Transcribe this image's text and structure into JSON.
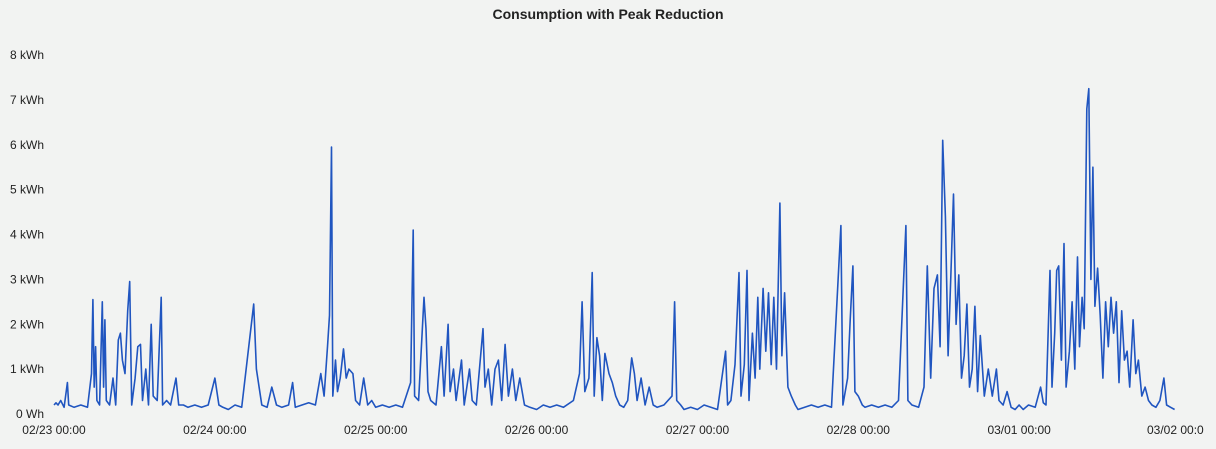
{
  "chart_data": {
    "type": "line",
    "title": "Consumption with Peak Reduction",
    "xlabel": "",
    "ylabel": "",
    "ylim": [
      0,
      8
    ],
    "y_unit": "kWh",
    "y_ticks": [
      {
        "value": 0,
        "label": "0 Wh"
      },
      {
        "value": 1,
        "label": "1 kWh"
      },
      {
        "value": 2,
        "label": "2 kWh"
      },
      {
        "value": 3,
        "label": "3 kWh"
      },
      {
        "value": 4,
        "label": "4 kWh"
      },
      {
        "value": 5,
        "label": "5 kWh"
      },
      {
        "value": 6,
        "label": "6 kWh"
      },
      {
        "value": 7,
        "label": "7 kWh"
      },
      {
        "value": 8,
        "label": "8 kWh"
      }
    ],
    "x_ticks": [
      {
        "value": 0,
        "label": "02/23 00:00"
      },
      {
        "value": 24,
        "label": "02/24 00:00"
      },
      {
        "value": 48,
        "label": "02/25 00:00"
      },
      {
        "value": 72,
        "label": "02/26 00:00"
      },
      {
        "value": 96,
        "label": "02/27 00:00"
      },
      {
        "value": 120,
        "label": "02/28 00:00"
      },
      {
        "value": 144,
        "label": "03/01 00:00"
      },
      {
        "value": 168,
        "label": "03/02 00:0"
      }
    ],
    "xlim": [
      0,
      168
    ],
    "grid": false,
    "legend": "none",
    "series": [
      {
        "color": "#2055c0",
        "points": [
          [
            0,
            0.2
          ],
          [
            0.3,
            0.25
          ],
          [
            0.6,
            0.2
          ],
          [
            1,
            0.3
          ],
          [
            1.5,
            0.15
          ],
          [
            2,
            0.7
          ],
          [
            2.2,
            0.2
          ],
          [
            3,
            0.15
          ],
          [
            4,
            0.2
          ],
          [
            5,
            0.15
          ],
          [
            5.6,
            0.9
          ],
          [
            5.8,
            2.55
          ],
          [
            6,
            0.6
          ],
          [
            6.2,
            1.5
          ],
          [
            6.4,
            0.3
          ],
          [
            6.8,
            0.2
          ],
          [
            7.2,
            2.5
          ],
          [
            7.4,
            0.6
          ],
          [
            7.6,
            2.1
          ],
          [
            7.8,
            0.3
          ],
          [
            8.3,
            0.2
          ],
          [
            8.8,
            0.8
          ],
          [
            9.2,
            0.2
          ],
          [
            9.6,
            1.65
          ],
          [
            9.9,
            1.8
          ],
          [
            10.2,
            1.2
          ],
          [
            10.6,
            0.9
          ],
          [
            11,
            2.3
          ],
          [
            11.3,
            2.95
          ],
          [
            11.6,
            0.2
          ],
          [
            12.1,
            0.8
          ],
          [
            12.5,
            1.5
          ],
          [
            12.9,
            1.55
          ],
          [
            13.2,
            0.3
          ],
          [
            13.7,
            1.0
          ],
          [
            14.1,
            0.2
          ],
          [
            14.5,
            2.0
          ],
          [
            14.8,
            0.4
          ],
          [
            15.4,
            0.3
          ],
          [
            16,
            2.6
          ],
          [
            16.2,
            0.2
          ],
          [
            16.8,
            0.3
          ],
          [
            17.4,
            0.2
          ],
          [
            18.2,
            0.8
          ],
          [
            18.6,
            0.2
          ],
          [
            19.3,
            0.2
          ],
          [
            20,
            0.15
          ],
          [
            21,
            0.2
          ],
          [
            22,
            0.15
          ],
          [
            23,
            0.2
          ],
          [
            24,
            0.8
          ],
          [
            24.6,
            0.2
          ],
          [
            25.2,
            0.15
          ],
          [
            26,
            0.1
          ],
          [
            27,
            0.2
          ],
          [
            28,
            0.15
          ],
          [
            29.8,
            2.45
          ],
          [
            30.2,
            1.0
          ],
          [
            30.6,
            0.6
          ],
          [
            31,
            0.2
          ],
          [
            31.8,
            0.15
          ],
          [
            32.5,
            0.6
          ],
          [
            33.2,
            0.2
          ],
          [
            34,
            0.15
          ],
          [
            35,
            0.2
          ],
          [
            35.6,
            0.7
          ],
          [
            36,
            0.15
          ],
          [
            37,
            0.2
          ],
          [
            38,
            0.25
          ],
          [
            39,
            0.2
          ],
          [
            39.8,
            0.9
          ],
          [
            40.3,
            0.4
          ],
          [
            40.8,
            1.5
          ],
          [
            41.1,
            2.2
          ],
          [
            41.4,
            5.95
          ],
          [
            41.6,
            0.4
          ],
          [
            42,
            1.2
          ],
          [
            42.3,
            0.5
          ],
          [
            42.7,
            0.8
          ],
          [
            43.2,
            1.45
          ],
          [
            43.6,
            0.8
          ],
          [
            44,
            1.0
          ],
          [
            44.6,
            0.9
          ],
          [
            45,
            0.3
          ],
          [
            45.6,
            0.2
          ],
          [
            46.2,
            0.8
          ],
          [
            46.8,
            0.2
          ],
          [
            47.4,
            0.3
          ],
          [
            48,
            0.15
          ],
          [
            49,
            0.2
          ],
          [
            50,
            0.15
          ],
          [
            51,
            0.2
          ],
          [
            52,
            0.15
          ],
          [
            53.2,
            0.7
          ],
          [
            53.6,
            4.1
          ],
          [
            53.8,
            0.4
          ],
          [
            54.4,
            0.3
          ],
          [
            55.2,
            2.6
          ],
          [
            55.5,
            1.9
          ],
          [
            55.8,
            0.5
          ],
          [
            56.2,
            0.3
          ],
          [
            57,
            0.2
          ],
          [
            57.8,
            1.5
          ],
          [
            58.2,
            0.4
          ],
          [
            58.8,
            2.0
          ],
          [
            59.1,
            0.5
          ],
          [
            59.6,
            1.0
          ],
          [
            60,
            0.3
          ],
          [
            60.8,
            1.2
          ],
          [
            61.2,
            0.2
          ],
          [
            62,
            1.0
          ],
          [
            62.4,
            0.3
          ],
          [
            63,
            0.2
          ],
          [
            64,
            1.9
          ],
          [
            64.3,
            0.6
          ],
          [
            64.8,
            1.0
          ],
          [
            65.3,
            0.2
          ],
          [
            65.8,
            1.0
          ],
          [
            66.3,
            1.2
          ],
          [
            66.8,
            0.3
          ],
          [
            67.3,
            1.55
          ],
          [
            67.8,
            0.4
          ],
          [
            68.4,
            1.0
          ],
          [
            68.9,
            0.3
          ],
          [
            69.5,
            0.8
          ],
          [
            70.2,
            0.2
          ],
          [
            71,
            0.15
          ],
          [
            72,
            0.1
          ],
          [
            73,
            0.2
          ],
          [
            74,
            0.15
          ],
          [
            75,
            0.2
          ],
          [
            76,
            0.15
          ],
          [
            77.5,
            0.3
          ],
          [
            78.4,
            0.9
          ],
          [
            78.8,
            2.5
          ],
          [
            79.2,
            0.5
          ],
          [
            79.8,
            0.8
          ],
          [
            80.3,
            3.15
          ],
          [
            80.6,
            0.4
          ],
          [
            81,
            1.7
          ],
          [
            81.4,
            1.3
          ],
          [
            81.8,
            0.3
          ],
          [
            82.2,
            1.35
          ],
          [
            82.8,
            0.9
          ],
          [
            83.3,
            0.7
          ],
          [
            83.8,
            0.4
          ],
          [
            84.4,
            0.2
          ],
          [
            85,
            0.15
          ],
          [
            85.6,
            0.3
          ],
          [
            86.2,
            1.25
          ],
          [
            86.6,
            0.9
          ],
          [
            87,
            0.3
          ],
          [
            87.6,
            0.8
          ],
          [
            88.2,
            0.2
          ],
          [
            88.8,
            0.6
          ],
          [
            89.4,
            0.2
          ],
          [
            90,
            0.15
          ],
          [
            91,
            0.2
          ],
          [
            92.2,
            0.4
          ],
          [
            92.6,
            2.5
          ],
          [
            92.9,
            0.3
          ],
          [
            93.5,
            0.2
          ],
          [
            94,
            0.1
          ],
          [
            95,
            0.15
          ],
          [
            96,
            0.1
          ],
          [
            97,
            0.2
          ],
          [
            98,
            0.15
          ],
          [
            99,
            0.1
          ],
          [
            100.2,
            1.4
          ],
          [
            100.5,
            0.2
          ],
          [
            101,
            0.3
          ],
          [
            101.6,
            1.1
          ],
          [
            102.2,
            3.15
          ],
          [
            102.5,
            0.4
          ],
          [
            103,
            1.1
          ],
          [
            103.4,
            3.2
          ],
          [
            103.7,
            0.3
          ],
          [
            104.2,
            1.8
          ],
          [
            104.6,
            0.8
          ],
          [
            105,
            2.6
          ],
          [
            105.3,
            1.0
          ],
          [
            105.8,
            2.8
          ],
          [
            106.2,
            1.4
          ],
          [
            106.6,
            2.7
          ],
          [
            107,
            1.1
          ],
          [
            107.4,
            2.6
          ],
          [
            107.8,
            1.0
          ],
          [
            108.3,
            4.7
          ],
          [
            108.6,
            1.3
          ],
          [
            109,
            2.7
          ],
          [
            109.5,
            0.6
          ],
          [
            110,
            0.4
          ],
          [
            110.6,
            0.2
          ],
          [
            111,
            0.1
          ],
          [
            112,
            0.15
          ],
          [
            113,
            0.2
          ],
          [
            114,
            0.15
          ],
          [
            115,
            0.2
          ],
          [
            116,
            0.15
          ],
          [
            117.4,
            4.2
          ],
          [
            117.7,
            0.2
          ],
          [
            118.4,
            0.8
          ],
          [
            118.8,
            2.1
          ],
          [
            119.2,
            3.3
          ],
          [
            119.5,
            0.5
          ],
          [
            120,
            0.4
          ],
          [
            120.6,
            0.2
          ],
          [
            121,
            0.15
          ],
          [
            122,
            0.2
          ],
          [
            123,
            0.15
          ],
          [
            124,
            0.2
          ],
          [
            125,
            0.15
          ],
          [
            126,
            0.3
          ],
          [
            127.1,
            4.2
          ],
          [
            127.4,
            0.3
          ],
          [
            128,
            0.2
          ],
          [
            129,
            0.15
          ],
          [
            129.8,
            0.6
          ],
          [
            130.3,
            3.3
          ],
          [
            130.8,
            0.8
          ],
          [
            131.3,
            2.8
          ],
          [
            131.8,
            3.1
          ],
          [
            132.2,
            1.5
          ],
          [
            132.6,
            6.1
          ],
          [
            133,
            4.4
          ],
          [
            133.4,
            1.3
          ],
          [
            133.8,
            3.05
          ],
          [
            134.2,
            4.9
          ],
          [
            134.6,
            2.0
          ],
          [
            135,
            3.1
          ],
          [
            135.4,
            0.8
          ],
          [
            135.8,
            1.3
          ],
          [
            136.2,
            2.45
          ],
          [
            136.6,
            0.6
          ],
          [
            137,
            1.0
          ],
          [
            137.4,
            2.4
          ],
          [
            137.8,
            0.5
          ],
          [
            138.2,
            1.75
          ],
          [
            138.8,
            0.4
          ],
          [
            139.4,
            1.0
          ],
          [
            140,
            0.4
          ],
          [
            140.6,
            1.0
          ],
          [
            141,
            0.3
          ],
          [
            141.6,
            0.2
          ],
          [
            142.2,
            0.5
          ],
          [
            142.8,
            0.15
          ],
          [
            143.4,
            0.1
          ],
          [
            144,
            0.2
          ],
          [
            144.6,
            0.1
          ],
          [
            145.4,
            0.2
          ],
          [
            146.4,
            0.15
          ],
          [
            147.2,
            0.6
          ],
          [
            147.6,
            0.25
          ],
          [
            148,
            0.2
          ],
          [
            148.6,
            3.2
          ],
          [
            148.9,
            0.6
          ],
          [
            149.3,
            1.8
          ],
          [
            149.6,
            3.2
          ],
          [
            149.9,
            3.3
          ],
          [
            150.3,
            1.2
          ],
          [
            150.7,
            3.8
          ],
          [
            151,
            0.6
          ],
          [
            151.5,
            1.4
          ],
          [
            151.9,
            2.5
          ],
          [
            152.3,
            1.0
          ],
          [
            152.7,
            3.5
          ],
          [
            153,
            1.5
          ],
          [
            153.4,
            2.6
          ],
          [
            153.7,
            1.9
          ],
          [
            154.1,
            6.8
          ],
          [
            154.4,
            7.25
          ],
          [
            154.7,
            3.0
          ],
          [
            155,
            5.5
          ],
          [
            155.3,
            2.4
          ],
          [
            155.7,
            3.25
          ],
          [
            156.1,
            2.2
          ],
          [
            156.5,
            0.8
          ],
          [
            156.9,
            2.5
          ],
          [
            157.3,
            1.5
          ],
          [
            157.7,
            2.6
          ],
          [
            158.1,
            1.8
          ],
          [
            158.5,
            2.5
          ],
          [
            158.9,
            0.7
          ],
          [
            159.3,
            2.3
          ],
          [
            159.7,
            1.2
          ],
          [
            160.1,
            1.4
          ],
          [
            160.5,
            0.6
          ],
          [
            161,
            2.1
          ],
          [
            161.4,
            0.9
          ],
          [
            161.8,
            1.2
          ],
          [
            162.3,
            0.4
          ],
          [
            162.8,
            0.6
          ],
          [
            163.3,
            0.3
          ],
          [
            163.8,
            0.2
          ],
          [
            164.4,
            0.15
          ],
          [
            165,
            0.3
          ],
          [
            165.6,
            0.8
          ],
          [
            166,
            0.2
          ],
          [
            166.6,
            0.15
          ],
          [
            167.2,
            0.1
          ]
        ]
      }
    ]
  }
}
